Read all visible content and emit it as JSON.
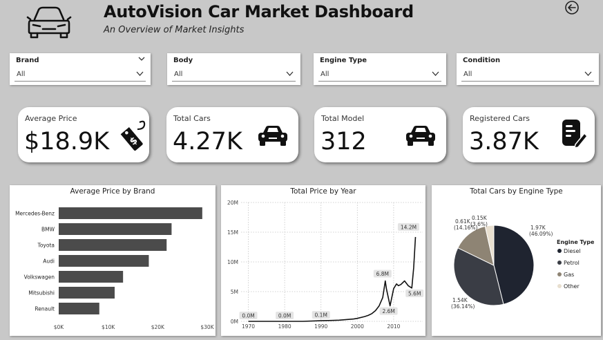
{
  "header": {
    "title": "AutoVision Car Market Dashboard",
    "subtitle": "An Overview of Market Insights",
    "logo_icon": "car-outline-icon",
    "back_icon": "back-arrow-circle-icon"
  },
  "filters": [
    {
      "label": "Brand",
      "value": "All"
    },
    {
      "label": "Body",
      "value": "All"
    },
    {
      "label": "Engine Type",
      "value": "All"
    },
    {
      "label": "Condition",
      "value": "All"
    }
  ],
  "kpis": [
    {
      "label": "Average Price",
      "value": "$18.9K",
      "icon": "price-tag-icon"
    },
    {
      "label": "Total Cars",
      "value": "4.27K",
      "icon": "car-icon"
    },
    {
      "label": "Total Model",
      "value": "312",
      "icon": "car-icon"
    },
    {
      "label": "Registered Cars",
      "value": "3.87K",
      "icon": "document-edit-icon"
    }
  ],
  "colors": {
    "background": "#c8c8c8",
    "bar": "#4b4b4b",
    "line": "#111111",
    "diesel": "#1f2430",
    "petrol": "#3a3d45",
    "gas": "#8e8474",
    "other": "#e8dfcf"
  },
  "chart_data": [
    {
      "type": "bar",
      "orientation": "horizontal",
      "title": "Average Price by Brand",
      "categories": [
        "Mercedes-Benz",
        "BMW",
        "Toyota",
        "Audi",
        "Volkswagen",
        "Mitsubishi",
        "Renault"
      ],
      "values": [
        29000,
        22800,
        21800,
        18200,
        13000,
        11300,
        8200
      ],
      "xlim": [
        0,
        30000
      ],
      "xticks": [
        "$0K",
        "$10K",
        "$20K",
        "$30K"
      ],
      "xtick_values": [
        0,
        10000,
        20000,
        30000
      ],
      "grid": false
    },
    {
      "type": "line",
      "title": "Total Price by Year",
      "x": [
        1970,
        1975,
        1980,
        1985,
        1990,
        1993,
        1995,
        1997,
        1999,
        2000,
        2002,
        2003,
        2004,
        2005,
        2006,
        2007,
        2007.7,
        2008,
        2009,
        2010,
        2010.8,
        2011.3,
        2012,
        2013,
        2014,
        2015,
        2015.5,
        2016
      ],
      "y": [
        0.0,
        0.0,
        0.0,
        0.0,
        0.1,
        0.15,
        0.2,
        0.3,
        0.4,
        0.5,
        0.8,
        1.0,
        1.3,
        1.8,
        2.6,
        4.0,
        6.8,
        5.5,
        2.6,
        5.5,
        6.3,
        6.0,
        6.2,
        6.8,
        6.0,
        5.6,
        9.0,
        14.2
      ],
      "ylim": [
        0,
        20
      ],
      "yticks": [
        "0M",
        "5M",
        "10M",
        "15M",
        "20M"
      ],
      "ytick_values": [
        0,
        5,
        10,
        15,
        20
      ],
      "xlim": [
        1968,
        2018
      ],
      "xticks": [
        "1970",
        "1980",
        "1990",
        "2000",
        "2010"
      ],
      "xtick_values": [
        1970,
        1980,
        1990,
        2000,
        2010
      ],
      "grid": true,
      "data_labels": [
        {
          "x": 1970,
          "y": 0.0,
          "label": "0.0M"
        },
        {
          "x": 1980,
          "y": 0.0,
          "label": "0.0M"
        },
        {
          "x": 1990,
          "y": 0.1,
          "label": "0.1M"
        },
        {
          "x": 2007.7,
          "y": 6.8,
          "label": "6.8M"
        },
        {
          "x": 2009,
          "y": 2.6,
          "label": "2.6M"
        },
        {
          "x": 2015,
          "y": 5.6,
          "label": "5.6M"
        },
        {
          "x": 2016,
          "y": 14.2,
          "label": "14.2M"
        }
      ]
    },
    {
      "type": "pie",
      "title": "Total Cars by Engine Type",
      "legend_title": "Engine Type",
      "legend_position": "right",
      "slices": [
        {
          "name": "Diesel",
          "value": 1.97,
          "value_label": "1.97K",
          "pct_label": "(46.09%)"
        },
        {
          "name": "Petrol",
          "value": 1.54,
          "value_label": "1.54K",
          "pct_label": "(36.14%)"
        },
        {
          "name": "Gas",
          "value": 0.61,
          "value_label": "0.61K",
          "pct_label": "(14.16%)"
        },
        {
          "name": "Other",
          "value": 0.15,
          "value_label": "0.15K",
          "pct_label": "(3.6%)"
        }
      ]
    }
  ]
}
